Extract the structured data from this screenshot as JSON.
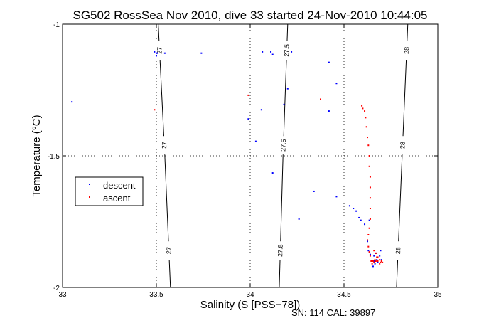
{
  "chart_data": {
    "type": "scatter",
    "title": "SG502 RossSea Nov 2010, dive 33 started 24-Nov-2010 10:44:05",
    "xlabel": "Salinity (S [PSS−78])",
    "ylabel": "Temperature (°C)",
    "xlim": [
      33,
      35
    ],
    "ylim": [
      -2,
      -1
    ],
    "xticks": [
      "33",
      "33.5",
      "34",
      "34.5",
      "35"
    ],
    "yticks": [
      "-1",
      "-1.5",
      "-2"
    ],
    "grid": "dotted",
    "legend_placement": "left-middle",
    "footer": "SN: 114  CAL: 39897",
    "colors": {
      "descent": "#0000ff",
      "ascent": "#ff0000",
      "contour": "#000000"
    },
    "contours": [
      {
        "label": "27",
        "points": [
          [
            33.51,
            -1.0
          ],
          [
            33.545,
            -1.5
          ],
          [
            33.575,
            -2.0
          ]
        ]
      },
      {
        "label": "27.5",
        "points": [
          [
            34.2,
            -1.0
          ],
          [
            34.175,
            -1.5
          ],
          [
            34.155,
            -2.0
          ]
        ]
      },
      {
        "label": "28",
        "points": [
          [
            34.84,
            -1.0
          ],
          [
            34.81,
            -1.5
          ],
          [
            34.78,
            -2.0
          ]
        ]
      }
    ],
    "series": [
      {
        "name": "descent",
        "marker": "dot",
        "points": [
          [
            33.05,
            -1.295
          ],
          [
            33.49,
            -1.105
          ],
          [
            33.5,
            -1.11
          ],
          [
            33.505,
            -1.11
          ],
          [
            33.5,
            -1.12
          ],
          [
            33.545,
            -1.11
          ],
          [
            33.74,
            -1.11
          ],
          [
            33.99,
            -1.36
          ],
          [
            34.03,
            -1.445
          ],
          [
            34.06,
            -1.325
          ],
          [
            34.065,
            -1.105
          ],
          [
            34.11,
            -1.105
          ],
          [
            34.12,
            -1.115
          ],
          [
            34.18,
            -1.305
          ],
          [
            34.2,
            -1.245
          ],
          [
            34.22,
            -1.105
          ],
          [
            34.12,
            -1.565
          ],
          [
            34.34,
            -1.635
          ],
          [
            34.26,
            -1.74
          ],
          [
            34.42,
            -1.145
          ],
          [
            34.46,
            -1.225
          ],
          [
            34.42,
            -1.33
          ],
          [
            34.46,
            -1.655
          ],
          [
            34.53,
            -1.69
          ],
          [
            34.55,
            -1.7
          ],
          [
            34.565,
            -1.71
          ],
          [
            34.58,
            -1.735
          ],
          [
            34.59,
            -1.745
          ],
          [
            34.61,
            -1.76
          ],
          [
            34.635,
            -1.745
          ],
          [
            34.625,
            -1.825
          ],
          [
            34.63,
            -1.86
          ],
          [
            34.64,
            -1.875
          ],
          [
            34.65,
            -1.9
          ],
          [
            34.655,
            -1.92
          ],
          [
            34.66,
            -1.88
          ],
          [
            34.665,
            -1.91
          ],
          [
            34.675,
            -1.895
          ],
          [
            34.68,
            -1.905
          ],
          [
            34.69,
            -1.88
          ],
          [
            34.695,
            -1.86
          ],
          [
            34.7,
            -1.895
          ],
          [
            34.67,
            -1.87
          ],
          [
            34.66,
            -1.9
          ]
        ]
      },
      {
        "name": "ascent",
        "marker": "dot",
        "points": [
          [
            33.49,
            -1.325
          ],
          [
            33.99,
            -1.27
          ],
          [
            34.375,
            -1.285
          ],
          [
            34.595,
            -1.31
          ],
          [
            34.6,
            -1.32
          ],
          [
            34.61,
            -1.33
          ],
          [
            34.615,
            -1.355
          ],
          [
            34.62,
            -1.39
          ],
          [
            34.625,
            -1.43
          ],
          [
            34.63,
            -1.46
          ],
          [
            34.635,
            -1.5
          ],
          [
            34.635,
            -1.54
          ],
          [
            34.64,
            -1.58
          ],
          [
            34.64,
            -1.62
          ],
          [
            34.64,
            -1.66
          ],
          [
            34.64,
            -1.7
          ],
          [
            34.64,
            -1.74
          ],
          [
            34.635,
            -1.775
          ],
          [
            34.63,
            -1.8
          ],
          [
            34.625,
            -1.82
          ],
          [
            34.63,
            -1.845
          ],
          [
            34.635,
            -1.865
          ],
          [
            34.64,
            -1.88
          ],
          [
            34.645,
            -1.9
          ],
          [
            34.65,
            -1.91
          ],
          [
            34.66,
            -1.905
          ],
          [
            34.67,
            -1.9
          ],
          [
            34.675,
            -1.885
          ],
          [
            34.68,
            -1.9
          ],
          [
            34.69,
            -1.91
          ],
          [
            34.7,
            -1.9
          ],
          [
            34.705,
            -1.905
          ],
          [
            34.665,
            -1.895
          ],
          [
            34.655,
            -1.9
          ],
          [
            34.66,
            -1.86
          ],
          [
            34.67,
            -1.87
          ],
          [
            34.68,
            -1.885
          ],
          [
            34.69,
            -1.895
          ],
          [
            34.695,
            -1.905
          ]
        ]
      }
    ]
  }
}
